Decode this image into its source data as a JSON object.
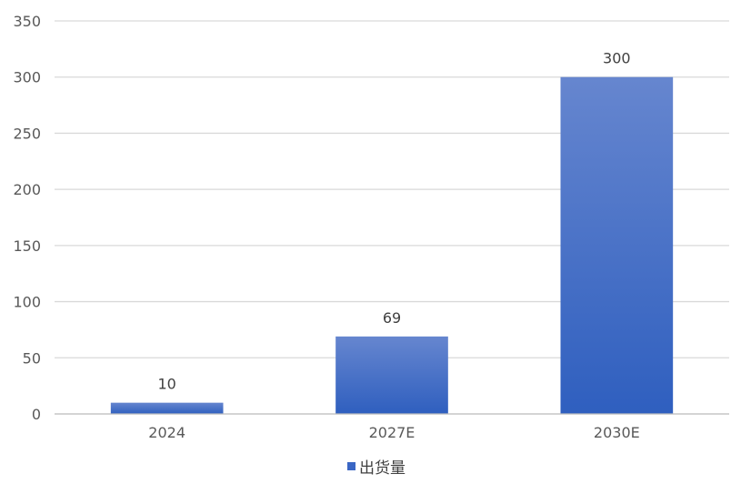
{
  "chart_data": {
    "type": "bar",
    "categories": [
      "2024",
      "2027E",
      "2030E"
    ],
    "series": [
      {
        "name": "出货量",
        "values": [
          10,
          69,
          300
        ]
      }
    ],
    "ylim": [
      0,
      350
    ],
    "yticks": [
      0,
      50,
      100,
      150,
      200,
      250,
      300,
      350
    ],
    "grid": true,
    "legend_position": "bottom",
    "colors": {
      "bar_top": "#6686cf",
      "bar_bottom": "#2f5fbf",
      "legend": "#3a66c4"
    }
  }
}
